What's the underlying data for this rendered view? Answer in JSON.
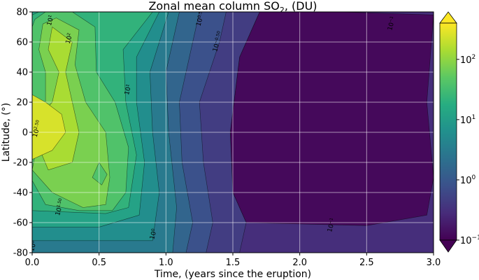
{
  "chart_data": {
    "type": "heatmap",
    "title": "Zonal mean column SO",
    "title_sub": "2",
    "title_suffix": ", (DU)",
    "xlabel": "Time, (years since the eruption)",
    "ylabel": "Latitude, (°)",
    "xlim": [
      0.0,
      3.0
    ],
    "ylim": [
      -80,
      80
    ],
    "x_ticks": [
      0.0,
      0.5,
      1.0,
      1.5,
      2.0,
      2.5,
      3.0
    ],
    "x_tick_labels": [
      "0.0",
      "0.5",
      "1.0",
      "1.5",
      "2.0",
      "2.5",
      "3.0"
    ],
    "y_ticks": [
      -80,
      -60,
      -40,
      -20,
      0,
      20,
      40,
      60,
      80
    ],
    "y_tick_labels": [
      "-80",
      "-60",
      "-40",
      "-20",
      "0",
      "20",
      "40",
      "60",
      "80"
    ],
    "grid": true,
    "colormap": "viridis",
    "scale": "log",
    "colorbar": {
      "range": [
        0.1,
        400
      ],
      "extend": "both",
      "ticks": [
        {
          "value": 0.1,
          "base": "10",
          "exp": "−1"
        },
        {
          "value": 1,
          "base": "10",
          "exp": "0"
        },
        {
          "value": 10,
          "base": "10",
          "exp": "1"
        },
        {
          "value": 100,
          "base": "10",
          "exp": "2"
        }
      ]
    },
    "regions": [
      {
        "level": 0.3,
        "polygon": [
          [
            0,
            -80
          ],
          [
            3,
            -80
          ],
          [
            3,
            80
          ],
          [
            0,
            80
          ]
        ]
      },
      {
        "level": 0.12,
        "polygon": [
          [
            1.6,
            -60
          ],
          [
            2.5,
            -62
          ],
          [
            2.95,
            -55
          ],
          [
            3,
            -30
          ],
          [
            2.95,
            20
          ],
          [
            3,
            78
          ],
          [
            2.3,
            80
          ],
          [
            1.7,
            80
          ],
          [
            1.55,
            50
          ],
          [
            1.48,
            0
          ],
          [
            1.5,
            -40
          ]
        ]
      },
      {
        "level": 0.45,
        "polygon": [
          [
            1.05,
            -80
          ],
          [
            1.55,
            -80
          ],
          [
            1.6,
            -60
          ],
          [
            1.5,
            -40
          ],
          [
            1.48,
            0
          ],
          [
            1.55,
            50
          ],
          [
            1.7,
            80
          ],
          [
            1.15,
            80
          ],
          [
            1.1,
            0
          ]
        ]
      },
      {
        "level": 0.8,
        "polygon": [
          [
            0.95,
            -80
          ],
          [
            1.3,
            -80
          ],
          [
            1.35,
            -60
          ],
          [
            1.28,
            -20
          ],
          [
            1.25,
            20
          ],
          [
            1.4,
            60
          ],
          [
            1.45,
            80
          ],
          [
            1.05,
            80
          ],
          [
            1.02,
            20
          ],
          [
            1.0,
            -40
          ]
        ]
      },
      {
        "level": 1.5,
        "polygon": [
          [
            0.9,
            -80
          ],
          [
            1.15,
            -80
          ],
          [
            1.2,
            -60
          ],
          [
            1.12,
            -20
          ],
          [
            1.1,
            20
          ],
          [
            1.2,
            60
          ],
          [
            1.25,
            80
          ],
          [
            0.92,
            80
          ],
          [
            0.95,
            20
          ],
          [
            0.93,
            -40
          ]
        ]
      },
      {
        "level": 3,
        "polygon": [
          [
            0.0,
            -80
          ],
          [
            1.05,
            -80
          ],
          [
            1.08,
            -50
          ],
          [
            1.02,
            0
          ],
          [
            1.0,
            40
          ],
          [
            1.1,
            80
          ],
          [
            0.0,
            80
          ]
        ]
      },
      {
        "level": 6,
        "polygon": [
          [
            0.0,
            -72
          ],
          [
            0.9,
            -72
          ],
          [
            0.95,
            -40
          ],
          [
            0.9,
            0
          ],
          [
            0.88,
            40
          ],
          [
            1.02,
            80
          ],
          [
            0.0,
            80
          ]
        ]
      },
      {
        "level": 12,
        "polygon": [
          [
            0.0,
            -63
          ],
          [
            0.5,
            -63
          ],
          [
            0.8,
            -55
          ],
          [
            0.84,
            -20
          ],
          [
            0.78,
            20
          ],
          [
            0.78,
            50
          ],
          [
            0.95,
            80
          ],
          [
            0.0,
            80
          ]
        ]
      },
      {
        "level": 22,
        "polygon": [
          [
            0.0,
            -52
          ],
          [
            0.55,
            -54
          ],
          [
            0.72,
            -50
          ],
          [
            0.78,
            -15
          ],
          [
            0.7,
            20
          ],
          [
            0.68,
            55
          ],
          [
            0.9,
            80
          ],
          [
            0.05,
            80
          ],
          [
            0.0,
            78
          ]
        ]
      },
      {
        "level": 40,
        "polygon": [
          [
            0.0,
            -32
          ],
          [
            0.1,
            -48
          ],
          [
            0.35,
            -52
          ],
          [
            0.6,
            -52
          ],
          [
            0.7,
            -40
          ],
          [
            0.72,
            -10
          ],
          [
            0.62,
            20
          ],
          [
            0.48,
            40
          ],
          [
            0.47,
            70
          ],
          [
            0.3,
            80
          ],
          [
            0.1,
            80
          ],
          [
            0.02,
            75
          ],
          [
            0.0,
            70
          ]
        ]
      },
      {
        "level": 75,
        "polygon": [
          [
            0.0,
            -25
          ],
          [
            0.15,
            -40
          ],
          [
            0.38,
            -50
          ],
          [
            0.55,
            -48
          ],
          [
            0.58,
            -30
          ],
          [
            0.55,
            0
          ],
          [
            0.4,
            20
          ],
          [
            0.32,
            45
          ],
          [
            0.35,
            68
          ],
          [
            0.18,
            76
          ],
          [
            0.08,
            72
          ],
          [
            0.05,
            55
          ],
          [
            0.1,
            40
          ],
          [
            0.1,
            20
          ]
        ]
      },
      {
        "level": 140,
        "polygon": [
          [
            0.05,
            -10
          ],
          [
            0.12,
            -25
          ],
          [
            0.3,
            -20
          ],
          [
            0.35,
            0
          ],
          [
            0.3,
            20
          ],
          [
            0.25,
            40
          ],
          [
            0.3,
            60
          ],
          [
            0.15,
            70
          ],
          [
            0.12,
            55
          ],
          [
            0.2,
            40
          ],
          [
            0.15,
            20
          ],
          [
            0.05,
            10
          ]
        ]
      },
      {
        "level": 250,
        "polygon": [
          [
            0.0,
            -18
          ],
          [
            0.15,
            -12
          ],
          [
            0.25,
            0
          ],
          [
            0.22,
            12
          ],
          [
            0.1,
            20
          ],
          [
            0.0,
            25
          ]
        ]
      },
      {
        "level": 40,
        "polygon": [
          [
            0.45,
            -30
          ],
          [
            0.52,
            -35
          ],
          [
            0.56,
            -28
          ],
          [
            0.5,
            -20
          ]
        ]
      }
    ],
    "contour_labels": [
      {
        "x": 0.15,
        "y": 74,
        "base": "10",
        "exp": "1"
      },
      {
        "x": 0.29,
        "y": 62,
        "base": "10",
        "exp": "2"
      },
      {
        "x": 0.73,
        "y": 28,
        "base": "10",
        "exp": "1"
      },
      {
        "x": 0.05,
        "y": 2,
        "base": "10",
        "exp": "2.50"
      },
      {
        "x": 0.22,
        "y": -50,
        "base": "10",
        "exp": "1.50"
      },
      {
        "x": 0.92,
        "y": -68,
        "base": "10",
        "exp": "0"
      },
      {
        "x": 1.27,
        "y": 75,
        "base": "10",
        "exp": "0.5"
      },
      {
        "x": 1.4,
        "y": 60,
        "base": "10",
        "exp": "−0.50"
      },
      {
        "x": 2.7,
        "y": 72,
        "base": "10",
        "exp": "−1"
      },
      {
        "x": 2.25,
        "y": -62,
        "base": "10",
        "exp": "−1"
      },
      {
        "x": 0.02,
        "y": -76,
        "base": "10",
        "exp": "0"
      }
    ]
  }
}
